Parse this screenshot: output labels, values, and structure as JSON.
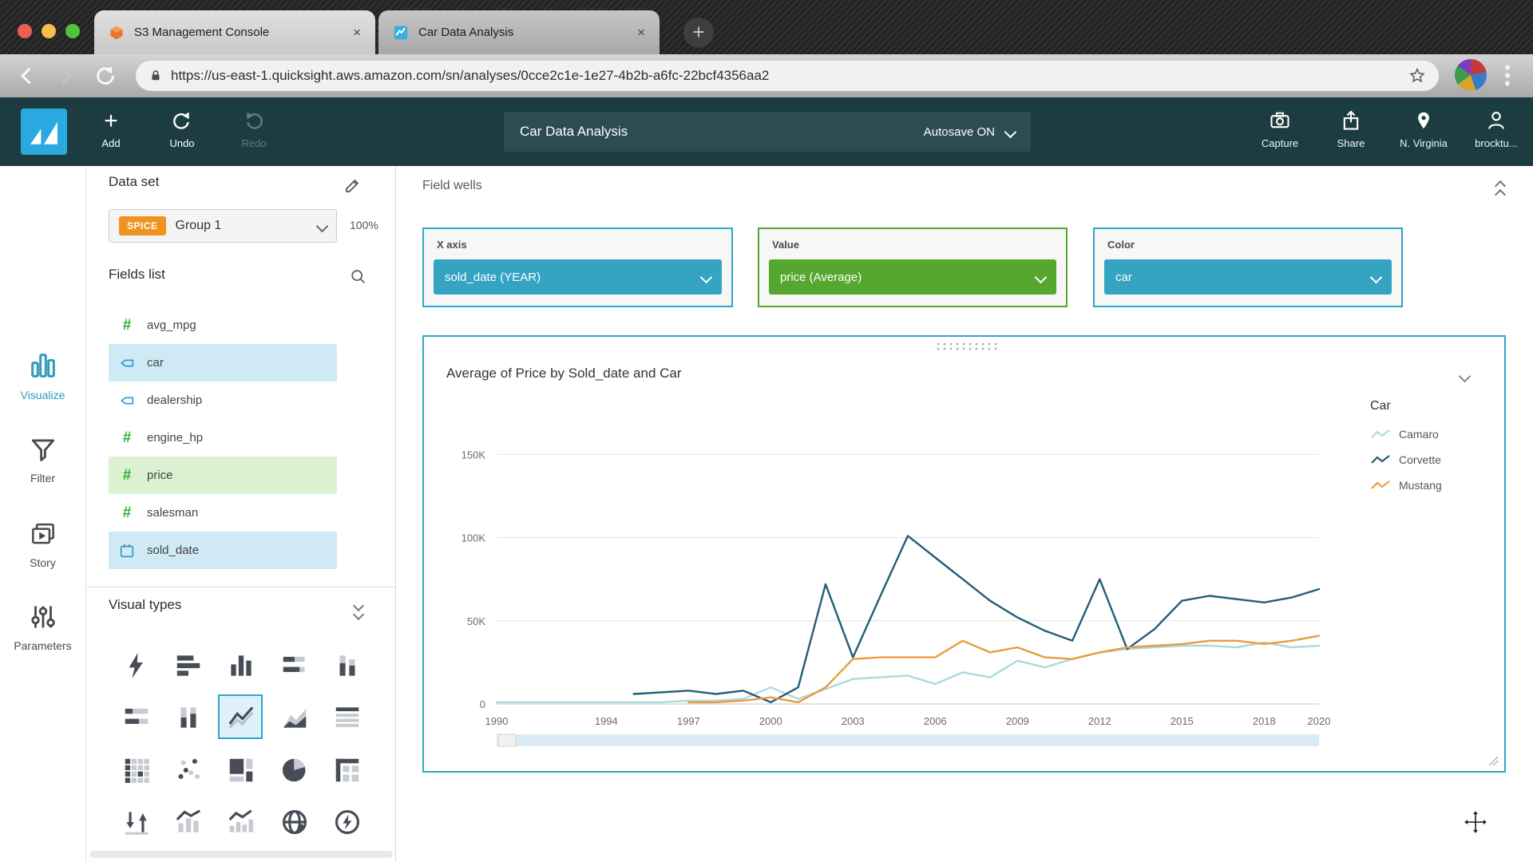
{
  "browser": {
    "tabs": [
      {
        "title": "S3 Management Console"
      },
      {
        "title": "Car Data Analysis"
      }
    ],
    "close_label": "×",
    "new_tab_label": "+",
    "url": "https://us-east-1.quicksight.aws.amazon.com/sn/analyses/0cce2c1e-1e27-4b2b-a6fc-22bcf4356aa2"
  },
  "qs_header": {
    "add": "Add",
    "undo": "Undo",
    "redo": "Redo",
    "title": "Car Data Analysis",
    "autosave": "Autosave ON",
    "capture": "Capture",
    "share": "Share",
    "region": "N. Virginia",
    "user": "brocktu..."
  },
  "rail": {
    "items": [
      {
        "label": "Visualize"
      },
      {
        "label": "Filter"
      },
      {
        "label": "Story"
      },
      {
        "label": "Parameters"
      }
    ]
  },
  "panel": {
    "dataset": {
      "title": "Data set",
      "badge": "SPICE",
      "name": "Group 1",
      "progress": "100%"
    },
    "fields": {
      "title": "Fields list",
      "items": [
        {
          "name": "avg_mpg",
          "type": "numeric",
          "highlight": "none"
        },
        {
          "name": "car",
          "type": "text",
          "highlight": "blue"
        },
        {
          "name": "dealership",
          "type": "text",
          "highlight": "none"
        },
        {
          "name": "engine_hp",
          "type": "numeric",
          "highlight": "none"
        },
        {
          "name": "price",
          "type": "numeric",
          "highlight": "green"
        },
        {
          "name": "salesman",
          "type": "numeric",
          "highlight": "none"
        },
        {
          "name": "sold_date",
          "type": "date",
          "highlight": "blue"
        }
      ]
    },
    "visual_types": {
      "title": "Visual types",
      "selected": "line-chart"
    }
  },
  "field_wells": {
    "title": "Field wells",
    "wells": [
      {
        "label": "X axis",
        "value": "sold_date (YEAR)",
        "color": "blue"
      },
      {
        "label": "Value",
        "value": "price (Average)",
        "color": "green"
      },
      {
        "label": "Color",
        "value": "car",
        "color": "blue"
      }
    ]
  },
  "colors": {
    "accent_blue": "#2ba7c9",
    "accent_green": "#56a72f",
    "spice_orange": "#ef941f",
    "header_teal": "#1d3c42"
  },
  "chart_data": {
    "type": "line",
    "title": "Average of Price by Sold_date and Car",
    "xlabel": "sold_date (YEAR)",
    "ylabel": "price (Average)",
    "legend_title": "Car",
    "legend_position": "right",
    "grid": "horizontal",
    "values_unit": "thousand USD",
    "ylim": [
      0,
      165
    ],
    "y_ticks": [
      0,
      50,
      100,
      150
    ],
    "y_tick_labels": [
      "0",
      "50K",
      "100K",
      "150K"
    ],
    "x_tick_years": [
      1990,
      1994,
      1997,
      2000,
      2003,
      2006,
      2009,
      2012,
      2015,
      2018,
      2020
    ],
    "years": [
      1990,
      1991,
      1992,
      1993,
      1994,
      1995,
      1996,
      1997,
      1998,
      1999,
      2000,
      2001,
      2002,
      2003,
      2004,
      2005,
      2006,
      2007,
      2008,
      2009,
      2010,
      2011,
      2012,
      2013,
      2014,
      2015,
      2016,
      2017,
      2018,
      2019,
      2020
    ],
    "series": [
      {
        "name": "Camaro",
        "color": "#a9dade",
        "values": [
          1,
          1,
          1,
          1,
          1,
          1,
          1,
          2,
          2,
          3,
          10,
          3,
          9,
          15,
          16,
          17,
          12,
          19,
          16,
          26,
          22,
          27,
          31,
          33,
          34,
          35,
          35,
          34,
          37,
          34,
          35
        ]
      },
      {
        "name": "Corvette",
        "color": "#235d77",
        "values": [
          null,
          null,
          null,
          null,
          null,
          6,
          7,
          8,
          6,
          8,
          1,
          10,
          72,
          28,
          65,
          101,
          88,
          75,
          62,
          52,
          44,
          38,
          75,
          33,
          45,
          62,
          65,
          63,
          61,
          64,
          69
        ]
      },
      {
        "name": "Mustang",
        "color": "#ec9b3e",
        "values": [
          null,
          null,
          null,
          null,
          null,
          null,
          null,
          1,
          1,
          2,
          4,
          1,
          10,
          27,
          28,
          28,
          28,
          38,
          31,
          34,
          28,
          27,
          31,
          34,
          35,
          36,
          38,
          38,
          36,
          38,
          41
        ]
      }
    ]
  }
}
